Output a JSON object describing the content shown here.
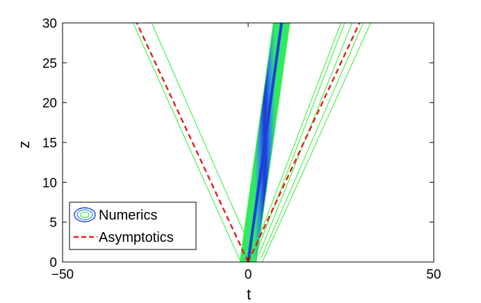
{
  "chart_data": {
    "type": "line",
    "title": "",
    "xlabel": "t",
    "ylabel": "z",
    "xlim": [
      -50,
      50
    ],
    "ylim": [
      0,
      30
    ],
    "xticks": [
      "-50",
      "0",
      "50"
    ],
    "yticks": [
      "0",
      "5",
      "10",
      "15",
      "20",
      "25",
      "30"
    ],
    "grid": false,
    "legend": {
      "placement": "bottom-left",
      "entries": [
        {
          "label": "Numerics",
          "style": "contour",
          "color": "#1f3fd6"
        },
        {
          "label": "Asymptotics",
          "style": "dashed",
          "color": "#e0201b"
        }
      ]
    },
    "series": [
      {
        "name": "Asymptotics",
        "style": "dashed",
        "color": "#e0201b",
        "segments": [
          {
            "x": [
              0,
              -30
            ],
            "y": [
              0,
              30
            ]
          },
          {
            "x": [
              0,
              30
            ],
            "y": [
              0,
              30
            ]
          }
        ]
      },
      {
        "name": "Numerics",
        "style": "contour",
        "colors": {
          "outer": "#3ef03e",
          "fill": "#30e865",
          "inner": "#2d8fe0",
          "core": "#1f3fd6"
        },
        "central_beam": {
          "x_start": 0,
          "x_end": 9,
          "y": [
            0,
            30
          ],
          "outer_half_width": 2.2
        },
        "side_contours": [
          {
            "x": [
              -2,
              -31
            ],
            "y": [
              0,
              30
            ]
          },
          {
            "x": [
              -0.5,
              -26
            ],
            "y": [
              3,
              30
            ]
          },
          {
            "x": [
              2,
              25
            ],
            "y": [
              2,
              30
            ]
          },
          {
            "x": [
              2.5,
              26
            ],
            "y": [
              1.5,
              30
            ]
          },
          {
            "x": [
              3,
              28
            ],
            "y": [
              1,
              30
            ]
          },
          {
            "x": [
              3.5,
              31
            ],
            "y": [
              0.5,
              30
            ]
          },
          {
            "x": [
              3.8,
              33
            ],
            "y": [
              0,
              30
            ]
          }
        ]
      }
    ]
  }
}
